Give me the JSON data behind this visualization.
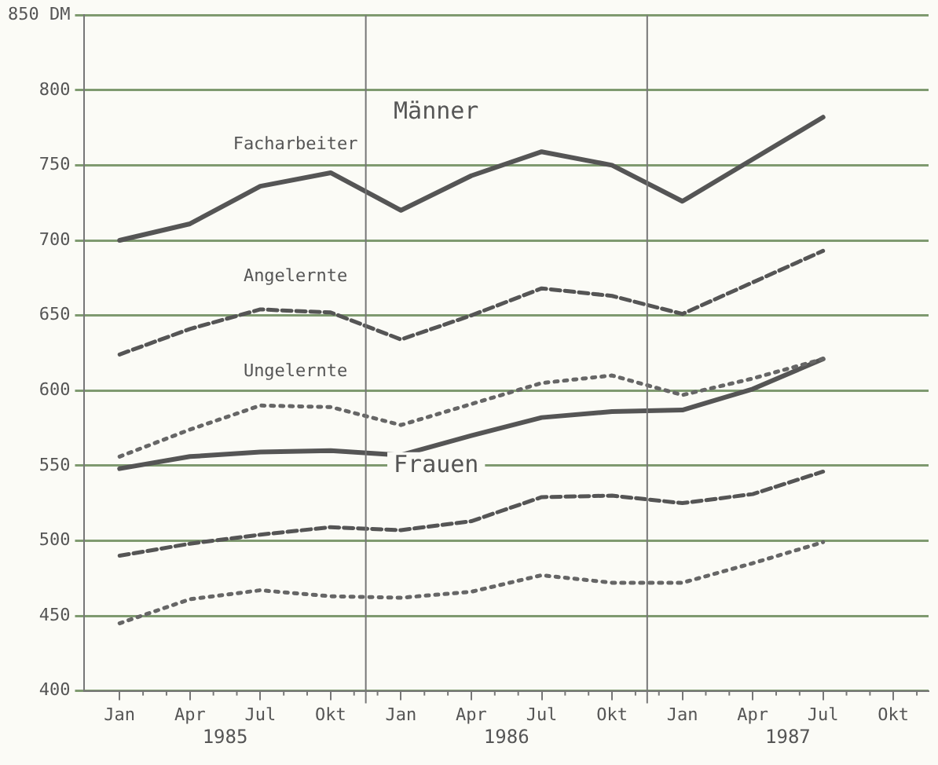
{
  "chart_data": {
    "type": "line",
    "categories": [
      "Jan",
      "Apr",
      "Jul",
      "Okt",
      "Jan",
      "Apr",
      "Jul",
      "Okt",
      "Jan",
      "Apr",
      "Jul",
      "Okt"
    ],
    "series": [
      {
        "name": "Facharbeiter",
        "color": "#555555",
        "line_style": "solid",
        "values": [
          700,
          711,
          736,
          745,
          720,
          743,
          759,
          750,
          726,
          754,
          782,
          null
        ]
      },
      {
        "name": "Angelernte",
        "color": "#555555",
        "line_style": "dashed",
        "values": [
          624,
          641,
          654,
          652,
          634,
          650,
          668,
          663,
          651,
          672,
          693,
          null
        ]
      },
      {
        "name": "Ungelernte",
        "color": "#666666",
        "line_style": "dotted",
        "values": [
          556,
          574,
          590,
          589,
          577,
          591,
          605,
          610,
          597,
          608,
          621,
          null
        ]
      },
      {
        "color": "#555555",
        "line_style": "solid",
        "values": [
          548,
          556,
          559,
          560,
          557,
          570,
          582,
          586,
          587,
          601,
          621,
          null
        ]
      },
      {
        "color": "#555555",
        "line_style": "dashed",
        "values": [
          490,
          498,
          504,
          509,
          507,
          513,
          529,
          530,
          525,
          531,
          546,
          null
        ]
      },
      {
        "color": "#666666",
        "line_style": "dotted",
        "values": [
          445,
          461,
          467,
          463,
          462,
          466,
          477,
          472,
          472,
          485,
          499,
          null
        ]
      }
    ],
    "ylim": [
      400,
      850
    ],
    "yticks": [
      400,
      450,
      500,
      550,
      600,
      650,
      700,
      750,
      800,
      {
        "value": 850,
        "label": "850 DM"
      }
    ],
    "grid": "y",
    "marker": "none",
    "annotations": [
      "Männer",
      "Frauen",
      "1985",
      "1986",
      "1987"
    ]
  }
}
